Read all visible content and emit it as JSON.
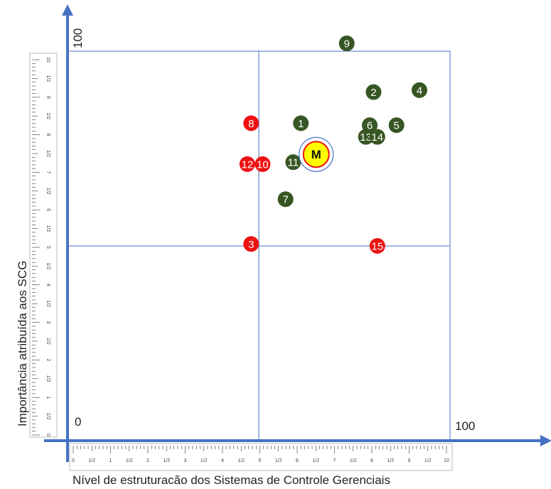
{
  "chart_data": {
    "type": "scatter",
    "title": "",
    "xlabel": "Nível de estruturacão dos Sistemas de Controle Gerenciais",
    "ylabel": "Importância atribuída aos SCG",
    "xlim": [
      0,
      100
    ],
    "ylim": [
      0,
      100
    ],
    "corner_labels": {
      "origin": "0",
      "x_max": "100",
      "y_max": "100"
    },
    "quadrant_lines": {
      "x": 50,
      "y": 50
    },
    "ruler_tick_labels": [
      "0",
      "1/2",
      "1",
      "1/2",
      "2",
      "1/2",
      "3",
      "1/2",
      "4",
      "1/2",
      "5",
      "1/2",
      "6",
      "1/2",
      "7",
      "1/2",
      "8",
      "1/2",
      "9",
      "1/2",
      "10"
    ],
    "colors": {
      "green": "#375623",
      "red": "#ee1111",
      "frame": "#4472c4",
      "axis": "#4472c4",
      "mean_fill": "#ffff00"
    },
    "points": [
      {
        "label": "1",
        "x": 61,
        "y": 81.5,
        "color": "green"
      },
      {
        "label": "2",
        "x": 80,
        "y": 89.5,
        "color": "green"
      },
      {
        "label": "3",
        "x": 48,
        "y": 50.5,
        "color": "red"
      },
      {
        "label": "4",
        "x": 92,
        "y": 90,
        "color": "green"
      },
      {
        "label": "5",
        "x": 86,
        "y": 81,
        "color": "green"
      },
      {
        "label": "6",
        "x": 79,
        "y": 81,
        "color": "green"
      },
      {
        "label": "7",
        "x": 57,
        "y": 62,
        "color": "green"
      },
      {
        "label": "8",
        "x": 48,
        "y": 81.5,
        "color": "red"
      },
      {
        "label": "9",
        "x": 73,
        "y": 102,
        "color": "green"
      },
      {
        "label": "10",
        "x": 51,
        "y": 71,
        "color": "red"
      },
      {
        "label": "11",
        "x": 59,
        "y": 71.5,
        "color": "green"
      },
      {
        "label": "12",
        "x": 47,
        "y": 71,
        "color": "red"
      },
      {
        "label": "13",
        "x": 78,
        "y": 78,
        "color": "green"
      },
      {
        "label": "14",
        "x": 81,
        "y": 78,
        "color": "green"
      },
      {
        "label": "15",
        "x": 81,
        "y": 50,
        "color": "red"
      }
    ],
    "mean_point": {
      "label": "M",
      "x": 65,
      "y": 73.5
    }
  }
}
